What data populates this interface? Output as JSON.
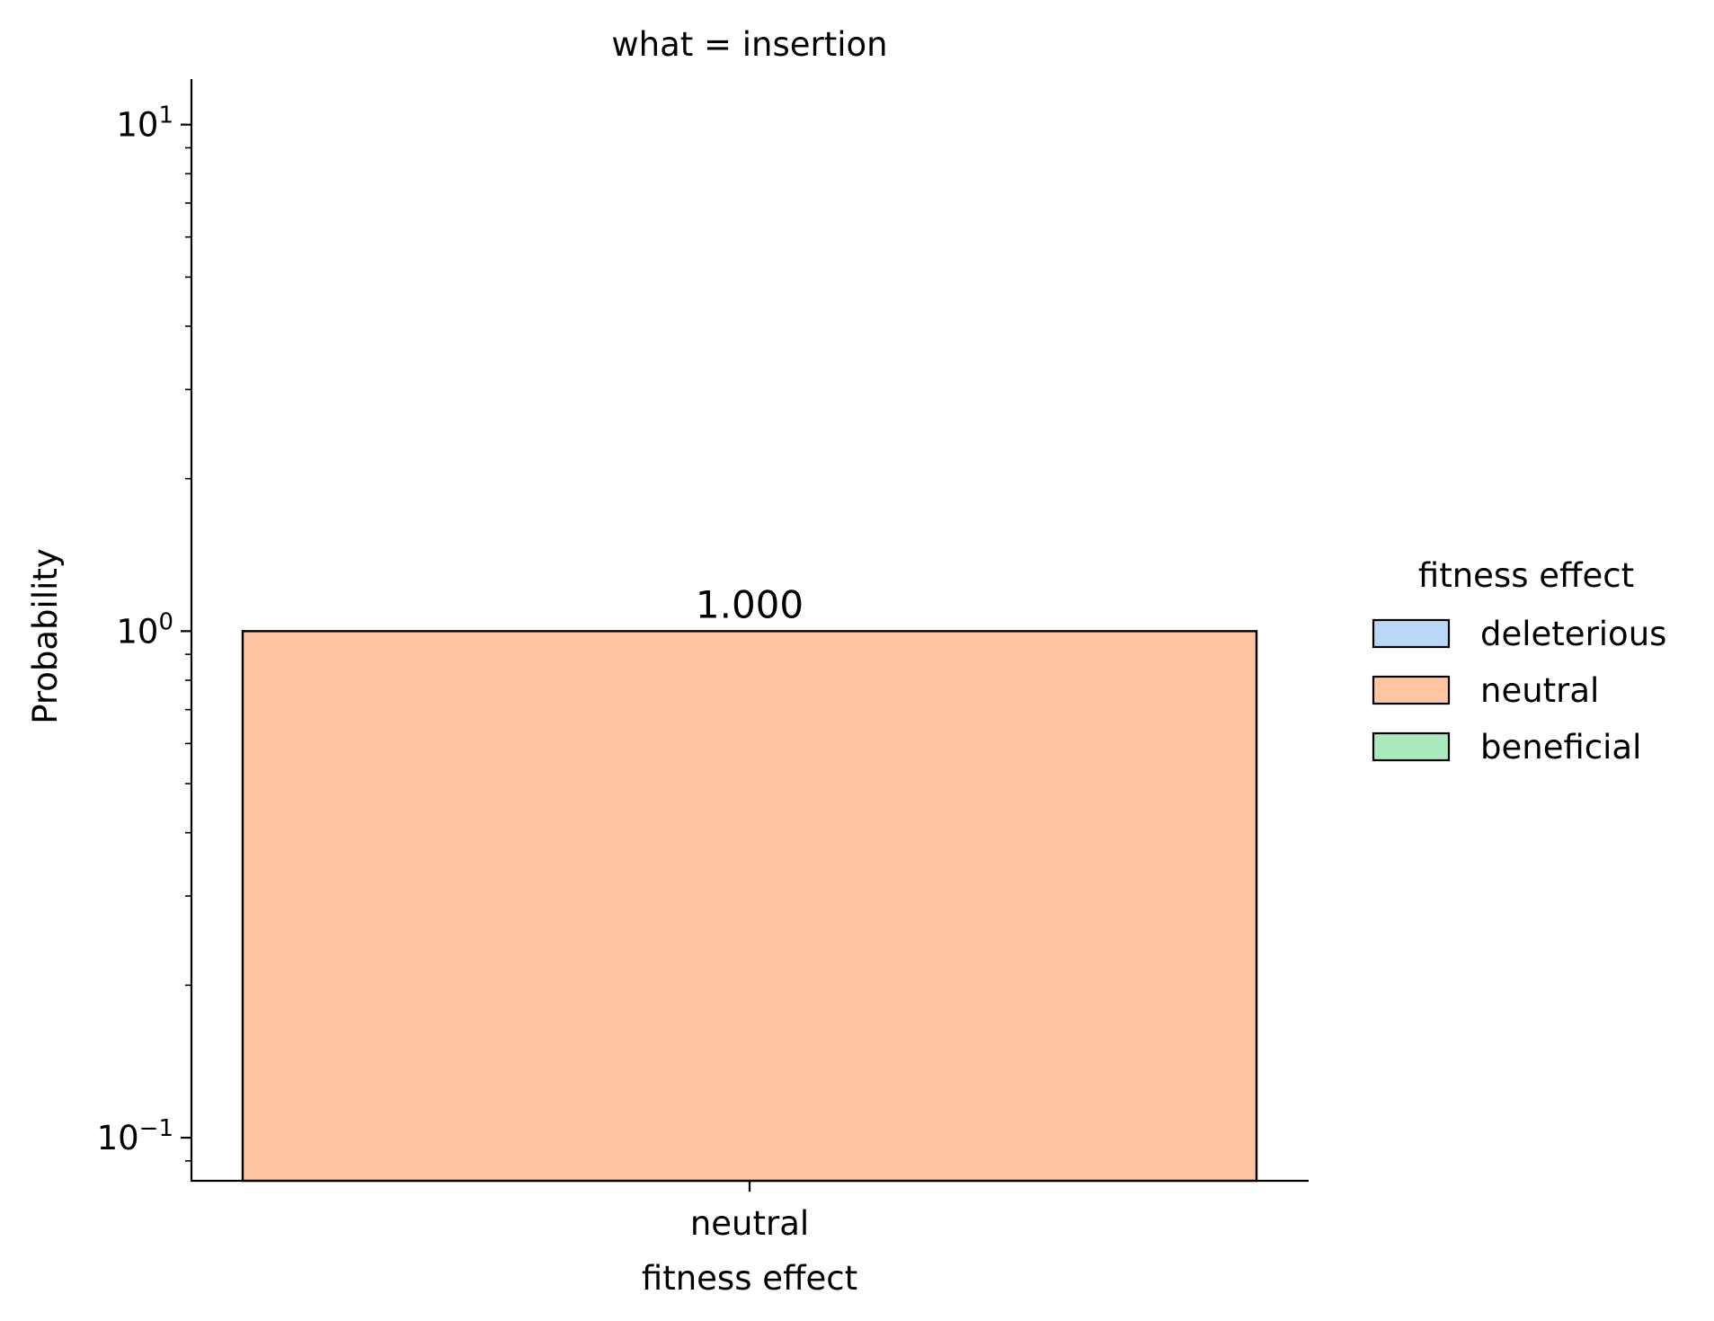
{
  "chart_data": {
    "type": "bar",
    "title": "what = insertion",
    "xlabel": "fitness effect",
    "ylabel": "Probability",
    "yscale": "log",
    "ylim": [
      0.0822,
      12.3
    ],
    "grid": false,
    "categories": [
      "neutral"
    ],
    "values": [
      1.0
    ],
    "data_labels": [
      "1.000"
    ],
    "bar_color": "#ffc5a1",
    "y_ticks": [
      {
        "value": 0.1,
        "label": "10",
        "exp": "−1"
      },
      {
        "value": 1,
        "label": "10",
        "exp": "0"
      },
      {
        "value": 10,
        "label": "10",
        "exp": "1"
      }
    ],
    "legend": {
      "title": "fitness effect",
      "position": "right",
      "entries": [
        {
          "label": "deleterious",
          "color": "#b9d7f7"
        },
        {
          "label": "neutral",
          "color": "#ffc5a1"
        },
        {
          "label": "beneficial",
          "color": "#a8eabb"
        }
      ]
    }
  }
}
